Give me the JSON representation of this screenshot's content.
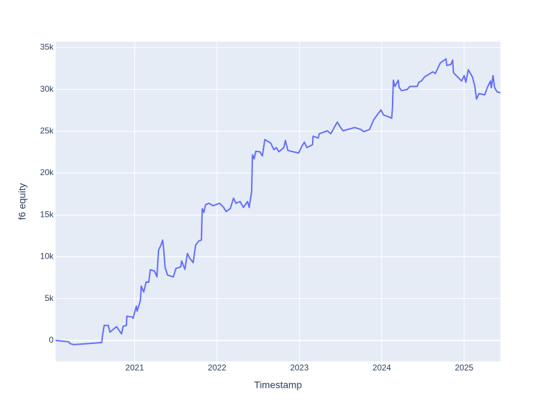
{
  "chart_data": {
    "type": "line",
    "x_label": "Timestamp",
    "y_label": "f6 equity",
    "color": "#636efa",
    "grid": true,
    "x": [
      2020.04,
      2020.2,
      2020.21,
      2020.26,
      2020.6,
      2020.61,
      2020.63,
      2020.68,
      2020.7,
      2020.76,
      2020.78,
      2020.84,
      2020.86,
      2020.9,
      2020.905,
      2020.97,
      2020.98,
      2021.02,
      2021.03,
      2021.07,
      2021.08,
      2021.11,
      2021.14,
      2021.17,
      2021.19,
      2021.24,
      2021.27,
      2021.29,
      2021.32,
      2021.34,
      2021.35,
      2021.37,
      2021.4,
      2021.47,
      2021.5,
      2021.56,
      2021.57,
      2021.61,
      2021.64,
      2021.67,
      2021.71,
      2021.74,
      2021.78,
      2021.81,
      2021.82,
      2021.84,
      2021.86,
      2021.9,
      2021.95,
      2022.03,
      2022.08,
      2022.11,
      2022.16,
      2022.2,
      2022.23,
      2022.28,
      2022.32,
      2022.37,
      2022.39,
      2022.42,
      2022.43,
      2022.45,
      2022.47,
      2022.52,
      2022.55,
      2022.58,
      2022.65,
      2022.69,
      2022.72,
      2022.75,
      2022.81,
      2022.83,
      2022.86,
      2022.99,
      2023.03,
      2023.06,
      2023.09,
      2023.16,
      2023.165,
      2023.23,
      2023.24,
      2023.34,
      2023.38,
      2023.46,
      2023.5,
      2023.53,
      2023.67,
      2023.75,
      2023.78,
      2023.85,
      2023.9,
      2023.99,
      2024.02,
      2024.09,
      2024.12,
      2024.13,
      2024.14,
      2024.16,
      2024.2,
      2024.21,
      2024.24,
      2024.31,
      2024.34,
      2024.43,
      2024.45,
      2024.48,
      2024.52,
      2024.62,
      2024.65,
      2024.71,
      2024.78,
      2024.79,
      2024.84,
      2024.86,
      2024.87,
      2024.92,
      2024.97,
      2025.0,
      2025.02,
      2025.05,
      2025.07,
      2025.1,
      2025.13,
      2025.15,
      2025.18,
      2025.25,
      2025.28,
      2025.32,
      2025.33,
      2025.35,
      2025.37,
      2025.4,
      2025.44
    ],
    "values": [
      0,
      -150,
      -350,
      -500,
      -250,
      650,
      1800,
      1800,
      1000,
      1500,
      1650,
      800,
      1700,
      1800,
      2900,
      2800,
      2650,
      4100,
      3500,
      4800,
      6500,
      5800,
      7000,
      6950,
      8450,
      8300,
      7600,
      10800,
      11400,
      12000,
      11100,
      8700,
      7800,
      7600,
      8600,
      8800,
      9500,
      8500,
      10400,
      9800,
      9300,
      11400,
      11900,
      12000,
      15750,
      15300,
      16200,
      16400,
      16100,
      16400,
      15900,
      15400,
      15750,
      17000,
      16400,
      16600,
      15900,
      16600,
      15900,
      17800,
      22200,
      21700,
      22600,
      22550,
      22050,
      24000,
      23600,
      22800,
      23050,
      22550,
      23050,
      23900,
      22700,
      22400,
      23200,
      23700,
      23050,
      23400,
      24400,
      24200,
      24700,
      25050,
      24700,
      26100,
      25450,
      25050,
      25450,
      25200,
      24950,
      25200,
      26350,
      27550,
      26950,
      26700,
      26550,
      27800,
      31100,
      30350,
      31100,
      30250,
      29850,
      30000,
      30350,
      30350,
      30850,
      31000,
      31500,
      32100,
      31900,
      33150,
      33650,
      32850,
      33000,
      33500,
      32000,
      31500,
      31000,
      31650,
      30850,
      32350,
      32000,
      31500,
      30350,
      28850,
      29500,
      29350,
      30200,
      31000,
      30200,
      31650,
      30200,
      29700,
      29600
    ],
    "xlim": [
      2020.04,
      2025.44
    ],
    "ylim": [
      -2500,
      35700
    ],
    "xticks": [
      2021,
      2022,
      2023,
      2024,
      2025
    ],
    "yticks": [
      0,
      {
        "value": 5000,
        "label": "5k"
      },
      {
        "value": 10000,
        "label": "10k"
      },
      {
        "value": 15000,
        "label": "15k"
      },
      {
        "value": 20000,
        "label": "20k"
      },
      {
        "value": 25000,
        "label": "25k"
      },
      {
        "value": 30000,
        "label": "30k"
      },
      {
        "value": 35000,
        "label": "35k"
      }
    ]
  }
}
